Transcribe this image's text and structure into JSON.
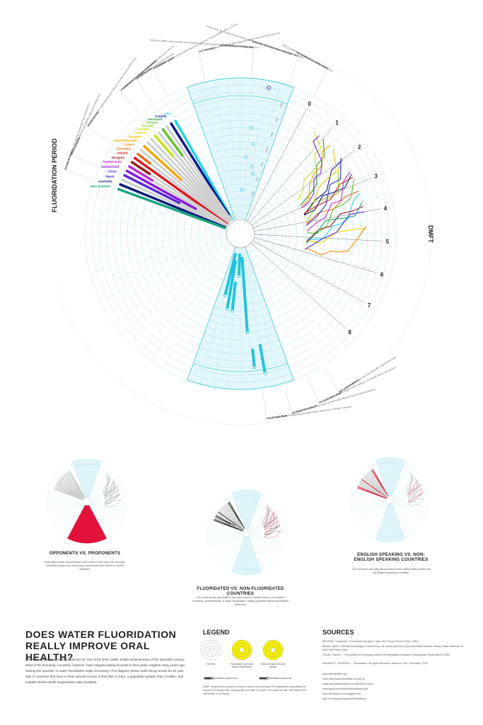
{
  "chart_data": {
    "type": "radial",
    "title": "Does water fluoridation really improve oral health?",
    "left_axis_title": "FLUORIDATION PERIOD",
    "right_axis_title": "DMFT",
    "dmft_ticks": [
      "0",
      "1",
      "2",
      "3",
      "4",
      "5",
      "6",
      "7",
      "8"
    ],
    "year_ticks": [
      "1940",
      "1950",
      "1960",
      "1970",
      "1980",
      "1990",
      "2000"
    ],
    "countries": [
      {
        "name": "USA",
        "color": "#22d3e6",
        "fluoridated": 1.0,
        "english": true
      },
      {
        "name": "Canada",
        "color": "#0b1b8f",
        "fluoridated": 0.95,
        "english": true
      },
      {
        "name": "Denmark",
        "color": "#2a9a3a",
        "fluoridated": 0.0,
        "english": false
      },
      {
        "name": "Finland",
        "color": "#62c12a",
        "fluoridated": 0.3,
        "english": false
      },
      {
        "name": "Norway",
        "color": "#a6d623",
        "fluoridated": 0.0,
        "english": false
      },
      {
        "name": "Sweden",
        "color": "#c9e218",
        "fluoridated": 0.25,
        "english": false
      },
      {
        "name": "Austria",
        "color": "#e8d600",
        "fluoridated": 0.0,
        "english": false
      },
      {
        "name": "Belgium",
        "color": "#f2c400",
        "fluoridated": 0.0,
        "english": false
      },
      {
        "name": "Czech Republic",
        "color": "#f5a400",
        "fluoridated": 0.45,
        "english": false
      },
      {
        "name": "France",
        "color": "#f08a00",
        "fluoridated": 0.0,
        "english": false
      },
      {
        "name": "Germany",
        "color": "#ee6a1c",
        "fluoridated": 0.15,
        "english": false
      },
      {
        "name": "Ireland",
        "color": "#e0181e",
        "fluoridated": 1.0,
        "english": true
      },
      {
        "name": "Hungary",
        "color": "#9a1a1a",
        "fluoridated": 0.2,
        "english": false
      },
      {
        "name": "Netherlands",
        "color": "#c22ad1",
        "fluoridated": 0.25,
        "english": false
      },
      {
        "name": "Switzerland",
        "color": "#8a18e0",
        "fluoridated": 0.7,
        "english": false
      },
      {
        "name": "China",
        "color": "#5a2ad6",
        "fluoridated": 0.55,
        "english": false
      },
      {
        "name": "Japan",
        "color": "#2a2ad8",
        "fluoridated": 0.0,
        "english": false
      },
      {
        "name": "Australia",
        "color": "#0a1f7a",
        "fluoridated": 1.0,
        "english": true
      },
      {
        "name": "New Zealand",
        "color": "#16a680",
        "fluoridated": 1.0,
        "english": true
      }
    ]
  },
  "annotations": [
    {
      "name": "THE BEAGLE EXPERIMENT",
      "text": "In 1990, Beagles were injected with fluoride as part of an experiment to determine the safety of fluoride."
    },
    {
      "name": "U.S. CENTERS FOR DISEASE CONTROL",
      "text": "Water fluoridation is listed as one of the ten great public health achievements of the 20th century."
    },
    {
      "name": "CHINA BANS FLUORIDATION",
      "text": "Chinese authorities banned water fluoridation in 2002."
    },
    {
      "name": "GERALD COX",
      "text": "An early proponent who showed fluoride could reduce tooth decay in rats."
    },
    {
      "name": "DAVID ZIMMERMAN",
      "text": "The U.S. Public Health Service champions the policy and endorses water fluoridation."
    },
    {
      "name": "ROBERT KOHN",
      "text": "The national committee claimed that fluoridation was safe."
    },
    {
      "name": "HAROLD HODGE",
      "text": "A toxicologist who claimed that fluoride was safe at low levels."
    },
    {
      "name": "OSCAR EWING",
      "text": "The Federal Security Agency chief who pushed fluoridation across the US."
    },
    {
      "name": "NEWBURGH-KINGSTON EXPERIMENT",
      "text": "10 year trial comparing fluoridated and non-fluoridated cities."
    },
    {
      "name": "GROVE GRANT",
      "text": "First city to fluoridate its water supply."
    },
    {
      "name": "WILLIAM MARCUS",
      "text": "A senior toxicologist who was fired after opposing fluoride."
    },
    {
      "name": "PHYLLIS MULLENIX",
      "text": "A leading neurotoxicologist whose research on fluoride effects was ignored."
    },
    {
      "name": "GEORGE WALDBOTT",
      "text": "A doctor and a leading expert on the health effects of environmental pollution."
    },
    {
      "name": "PHILIP SHEYDER",
      "text": "A chemist from Philadelphia who gave expert testimony on behalf of farmers."
    }
  ],
  "small_multiples": [
    {
      "title": "OPPONENTS VS. PROPONENTS",
      "desc": "Most proponents of fluoridation were active in the early 50s and 60s, whereas people who were active opponents were active in recent decades."
    },
    {
      "title": "FLUORIDATED VS. NON-FLUORIDATED COUNTRIES",
      "desc": "The tooth decay rate (DMFT) has decreased to similar levels in all studied countries, independently of water fluoridation, raising questions about fluoridation efficiency."
    },
    {
      "title": "ENGLISH SPEAKING VS. NON-ENGLISH SPEAKING COUNTRIES",
      "desc": "The countries who still add fluoride to their public water system are all English-speaking countries."
    }
  ],
  "headline": "DOES WATER FLUORIDATION REALLY IMPROVE ORAL HEALTH?",
  "intro": "Water fluoridation has been acclaimed as \"one of the best\" public health achievements of the twentieth century. Most of the European countries, however, have stopped adding fluoride to their water supplies many years ago, leaving the question: is water fluoridation really necessary? The diagram shows tooth decay trends for 12 year olds in countries that have a mean annual income of $10,000 or more, a population greater than 3 million, and suitable World Health Organization data available.",
  "legend": {
    "title": "LEGEND",
    "items": [
      "Timeline",
      "Fluoridation and tooth decay relationship",
      "Historical facts and key people"
    ],
    "markers": [
      "Fluoridation proponents",
      "Fluoridation opponents"
    ],
    "dmft_note": "DMFT describes the amount of dental caries in an individual. It's obtained by calculating the number of Decayed (D), missing (M), and filled (F) teeth. The lower the rate, the better is the oral health of a country."
  },
  "sources": {
    "title": "SOURCES",
    "refs": [
      "BRYSON, Christopher. The fluoride deception. New York: Seven Stories Press, 2004.",
      "BRIAN, Martin. Scientific knowledge in controversy: the social dynamics of the fluoridation debate. Albany: State University of New York Press, 1991.",
      "CRAIN, Robert L... The politics of community conflict: the fluoridation decisions. Indianapolis: Bobbs-Merrill, 1969.",
      "WALDBOTT, GEORGE L... Fluoridation: the great dilemma. Lawrence, Kan.: Coronado, 1978."
    ],
    "links": [
      "www.fluoridealert.org/",
      "www.http://www.whocollab.od.mah.se",
      "www.historyoffluoridation.com/fluoride-1.html",
      "www.gbg.bonet.se/bwf/art/lymbloss.html",
      "www.fluoridation.com/caggest.htm",
      "http://en.wikipedia.org/wiki/Fluoridation"
    ]
  }
}
